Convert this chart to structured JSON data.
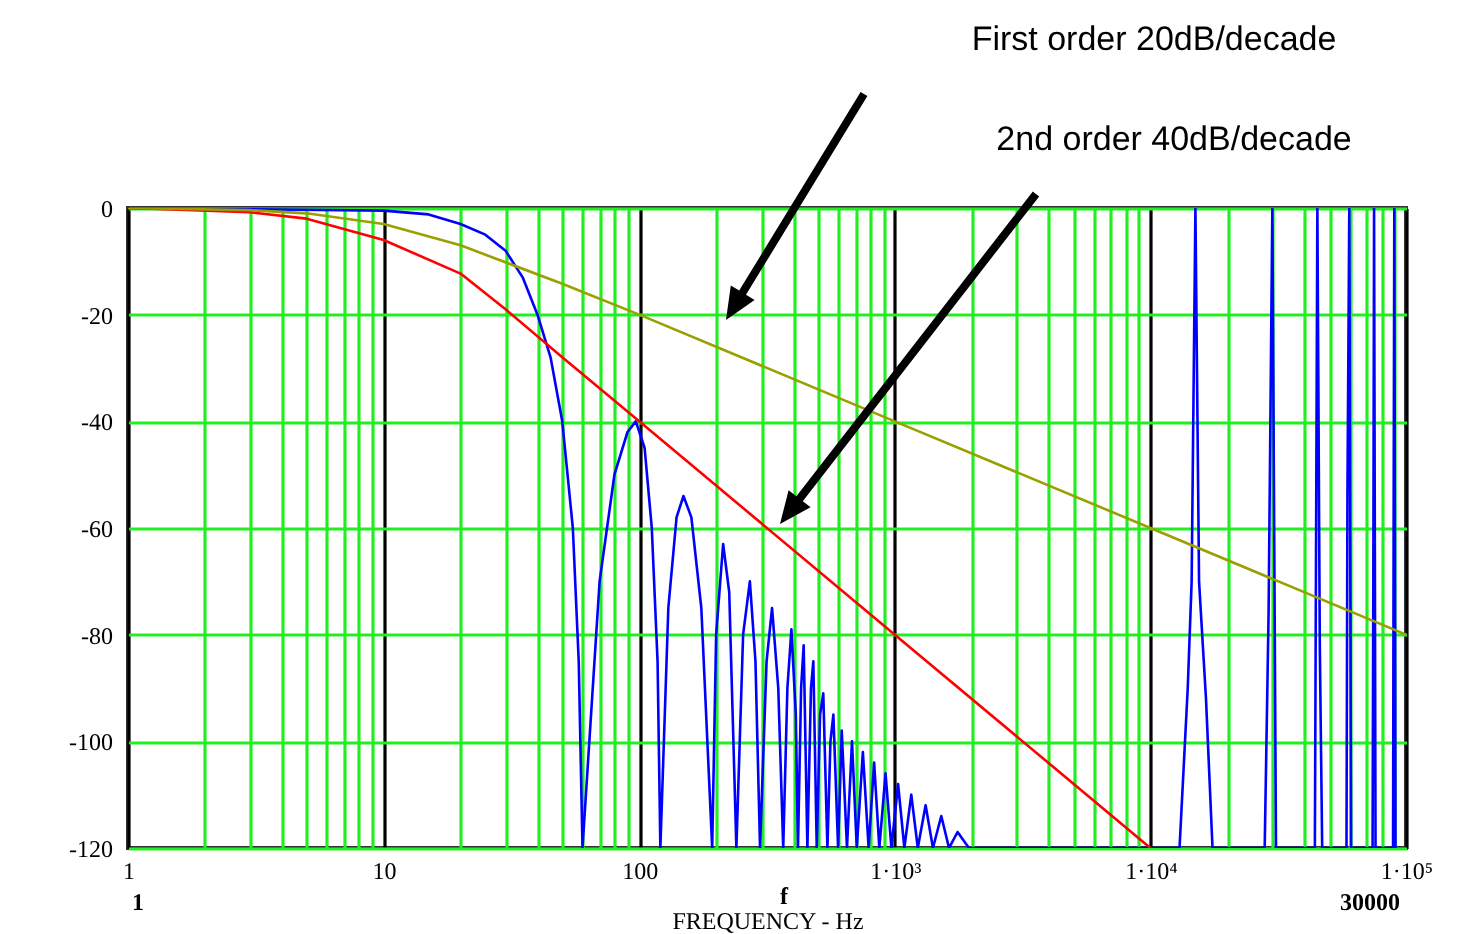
{
  "chart_data": {
    "type": "line",
    "xlabel": "FREQUENCY - Hz",
    "annotations": [
      "First order 20dB/decade",
      "2nd order 40dB/decade",
      "f",
      "1",
      "30000"
    ],
    "log": "x",
    "xlim": [
      1,
      100000
    ],
    "xticks": [
      1,
      {
        "value": 2,
        "label": null
      },
      {
        "value": 3,
        "label": null
      },
      {
        "value": 4,
        "label": null
      },
      {
        "value": 5,
        "label": null
      },
      {
        "value": 6,
        "label": null
      },
      {
        "value": 7,
        "label": null
      },
      {
        "value": 8,
        "label": null
      },
      {
        "value": 9,
        "label": null
      },
      10,
      {
        "value": 20,
        "label": null
      },
      {
        "value": 30,
        "label": null
      },
      {
        "value": 40,
        "label": null
      },
      {
        "value": 50,
        "label": null
      },
      {
        "value": 60,
        "label": null
      },
      {
        "value": 70,
        "label": null
      },
      {
        "value": 80,
        "label": null
      },
      {
        "value": 90,
        "label": null
      },
      100,
      {
        "value": 200,
        "label": null
      },
      {
        "value": 300,
        "label": null
      },
      {
        "value": 400,
        "label": null
      },
      {
        "value": 500,
        "label": null
      },
      {
        "value": 600,
        "label": null
      },
      {
        "value": 700,
        "label": null
      },
      {
        "value": 800,
        "label": null
      },
      {
        "value": 900,
        "label": null
      },
      {
        "value": 1000,
        "label": "1·10³"
      },
      {
        "value": 2000,
        "label": null
      },
      {
        "value": 3000,
        "label": null
      },
      {
        "value": 4000,
        "label": null
      },
      {
        "value": 5000,
        "label": null
      },
      {
        "value": 6000,
        "label": null
      },
      {
        "value": 7000,
        "label": null
      },
      {
        "value": 8000,
        "label": null
      },
      {
        "value": 9000,
        "label": null
      },
      {
        "value": 10000,
        "label": "1·10⁴"
      },
      {
        "value": 20000,
        "label": null
      },
      {
        "value": 30000,
        "label": null
      },
      {
        "value": 40000,
        "label": null
      },
      {
        "value": 50000,
        "label": null
      },
      {
        "value": 60000,
        "label": null
      },
      {
        "value": 70000,
        "label": null
      },
      {
        "value": 80000,
        "label": null
      },
      {
        "value": 90000,
        "label": null
      },
      {
        "value": 100000,
        "label": "1·10⁵"
      }
    ],
    "ylim": [
      -120,
      0
    ],
    "yticks": [
      -120,
      -100,
      -80,
      -60,
      -40,
      -20,
      0
    ],
    "grid": true,
    "series": [
      {
        "color": "#0000ff",
        "x": [
          1,
          10,
          15,
          20,
          25,
          30,
          35,
          40,
          45,
          50,
          55,
          58,
          60,
          70,
          80,
          90,
          97,
          105,
          112,
          118,
          121,
          130,
          140,
          149,
          160,
          175,
          193,
          200,
          213,
          225,
          240,
          255,
          271,
          285,
          297,
          315,
          331,
          350,
          366,
          380,
          394,
          410,
          418,
          430,
          440,
          455,
          470,
          480,
          495,
          510,
          525,
          545,
          560,
          575,
          600,
          620,
          650,
          680,
          710,
          750,
          790,
          830,
          870,
          920,
          970,
          1030,
          1090,
          1160,
          1230,
          1320,
          1410,
          1520,
          1630,
          1760,
          1950,
          13000,
          14000,
          14500,
          15000,
          15500,
          16500,
          17500,
          28000,
          29000,
          30000,
          31000,
          44000,
          45000,
          46000,
          47000,
          58500,
          59000,
          60000,
          61000,
          74000,
          74500,
          75000,
          76000,
          89000,
          89500,
          90000,
          91000
        ],
        "values": [
          0,
          -0.5,
          -1.2,
          -3,
          -5,
          -8,
          -13,
          -20,
          -28,
          -40,
          -60,
          -85,
          -120,
          -70,
          -50,
          -42,
          -40,
          -45,
          -60,
          -85,
          -120,
          -75,
          -58,
          -54,
          -58,
          -75,
          -120,
          -80,
          -63,
          -72,
          -120,
          -80,
          -70,
          -85,
          -120,
          -85,
          -75,
          -90,
          -120,
          -90,
          -79,
          -95,
          -120,
          -90,
          -82,
          -120,
          -90,
          -85,
          -120,
          -95,
          -91,
          -120,
          -100,
          -95,
          -120,
          -98,
          -120,
          -100,
          -120,
          -102,
          -120,
          -104,
          -120,
          -106,
          -120,
          -108,
          -120,
          -110,
          -120,
          -112,
          -120,
          -114,
          -120,
          -117,
          -120,
          -120,
          -90,
          -70,
          0,
          -70,
          -92,
          -120,
          -120,
          -76,
          0,
          -120,
          -120,
          0,
          -82,
          -120,
          -120,
          -54,
          0,
          -120,
          -120,
          -69,
          0,
          -120,
          -120,
          -54,
          0,
          -120
        ]
      },
      {
        "color": "#ff0000",
        "x": [
          1,
          3,
          5,
          10,
          20,
          30,
          50,
          100,
          1000,
          10000
        ],
        "values": [
          0,
          -0.8,
          -2,
          -6,
          -12.3,
          -19,
          -28,
          -40,
          -80,
          -120
        ]
      },
      {
        "color": "#99a000",
        "x": [
          1,
          3,
          5,
          10,
          20,
          50,
          100,
          1000,
          10000,
          100000
        ],
        "values": [
          0,
          -0.4,
          -1,
          -3,
          -7,
          -14.2,
          -20,
          -40,
          -60,
          -80
        ]
      }
    ]
  }
}
